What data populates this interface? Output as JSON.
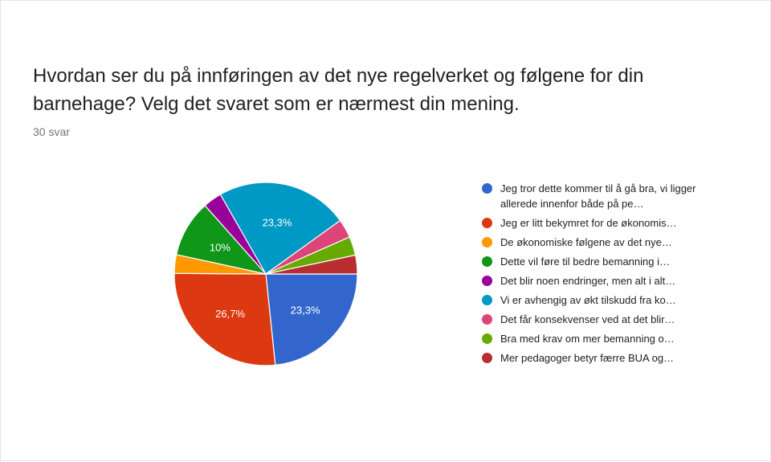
{
  "question": {
    "title": "Hvordan ser du på innføringen av det nye regelverket og følgene for din barnehage? Velg det svaret som er nærmest din mening.",
    "responses": "30 svar"
  },
  "chart_data": {
    "type": "pie",
    "title": "",
    "slices": [
      {
        "label": "Jeg tror dette kommer til å gå bra, vi ligger allerede innenfor både på pe…",
        "value": 23.3,
        "display": "23,3%",
        "color": "#3366cc"
      },
      {
        "label": "Jeg er litt bekymret for de økonomis…",
        "value": 26.7,
        "display": "26,7%",
        "color": "#dc3912"
      },
      {
        "label": "De økonomiske følgene av det nye…",
        "value": 3.3,
        "display": "",
        "color": "#ff9900"
      },
      {
        "label": "Dette vil føre til bedre bemanning i…",
        "value": 10.0,
        "display": "10%",
        "color": "#109618"
      },
      {
        "label": "Det blir noen endringer, men alt i alt…",
        "value": 3.3,
        "display": "",
        "color": "#990099"
      },
      {
        "label": "Vi er avhengig av økt tilskudd fra ko…",
        "value": 23.3,
        "display": "23,3%",
        "color": "#0099c6"
      },
      {
        "label": "Det får konsekvenser ved at det blir…",
        "value": 3.3,
        "display": "",
        "color": "#dd4477"
      },
      {
        "label": "Bra med krav om mer bemanning o…",
        "value": 3.3,
        "display": "",
        "color": "#66aa00"
      },
      {
        "label": "Mer pedagoger betyr færre BUA og…",
        "value": 3.3,
        "display": "",
        "color": "#b82e2e"
      }
    ],
    "legend_position": "right"
  }
}
